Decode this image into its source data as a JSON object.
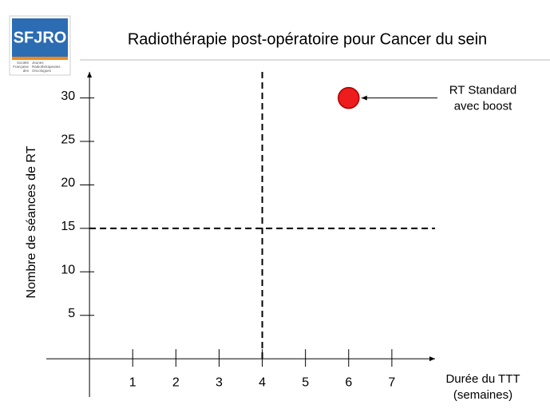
{
  "logo": {
    "name": "SFJRO",
    "left": [
      "Société",
      "Française",
      "des"
    ],
    "right": [
      "Jeunes",
      "Radiothérapeutes",
      "Oncologues"
    ]
  },
  "chart_data": {
    "type": "scatter",
    "title": "Radiothérapie post-opératoire pour Cancer du sein",
    "x_label": [
      "Durée du TTT",
      "(semaines)"
    ],
    "y_label": "Nombre de séances de RT",
    "x": [
      6
    ],
    "values": [
      30
    ],
    "color": "#ee1c1c",
    "annotation": [
      "RT Standard",
      "avec boost"
    ],
    "vlines": [
      4
    ],
    "hlines": [
      15
    ],
    "xlim": [
      -1,
      8
    ],
    "ylim": [
      -4.4,
      33
    ],
    "xticks": [
      1,
      2,
      3,
      4,
      5,
      6,
      7
    ],
    "yticks": [
      5,
      10,
      15,
      20,
      25,
      30
    ]
  }
}
